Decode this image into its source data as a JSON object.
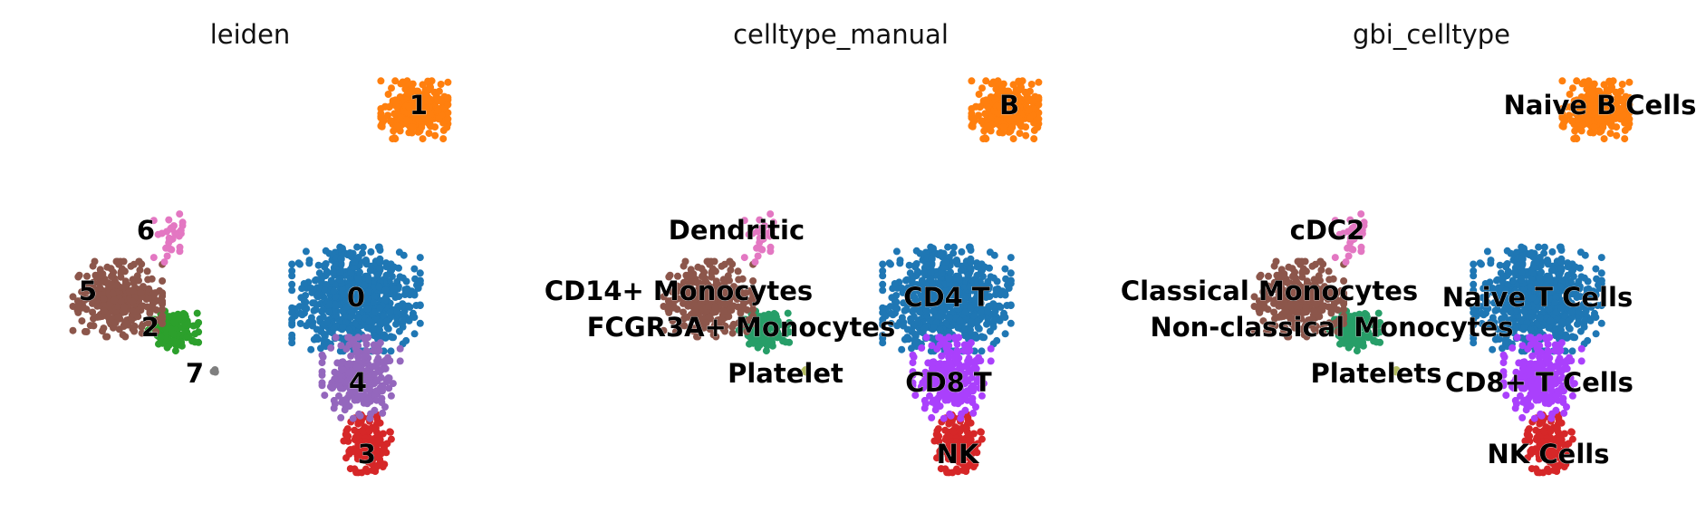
{
  "figure": {
    "background": "#ffffff"
  },
  "panels": [
    {
      "title": "leiden",
      "labels": [
        "1",
        "6",
        "5",
        "2",
        "0",
        "7",
        "4",
        "3"
      ]
    },
    {
      "title": "celltype_manual",
      "labels": [
        "B",
        "Dendritic",
        "CD14+ Monocytes",
        "FCGR3A+ Monocytes",
        "CD4 T",
        "Platelet",
        "CD8 T",
        "NK"
      ]
    },
    {
      "title": "gbi_celltype",
      "labels": [
        "Naive B Cells",
        "cDC2",
        "Classical Monocytes",
        "Non-classical Monocytes",
        "Naive T Cells",
        "Platelets",
        "CD8+ T Cells",
        "NK Cells"
      ]
    }
  ],
  "chart_data": [
    {
      "type": "scatter",
      "title": "leiden",
      "xlabel": "",
      "ylabel": "",
      "grid": false,
      "axes_visible": false,
      "legend": "on data",
      "series": [
        {
          "name": "0",
          "color": "#1f77b4",
          "center": [
            0.0,
            0.0
          ],
          "spread": [
            0.23,
            0.18
          ],
          "n": 700
        },
        {
          "name": "1",
          "color": "#ff7f0e",
          "center": [
            0.23,
            0.72
          ],
          "spread": [
            0.12,
            0.1
          ],
          "n": 330
        },
        {
          "name": "2",
          "color": "#2ca02c",
          "center": [
            -0.72,
            -0.12
          ],
          "spread": [
            0.09,
            0.07
          ],
          "n": 120
        },
        {
          "name": "3",
          "color": "#d62728",
          "center": [
            0.04,
            -0.55
          ],
          "spread": [
            0.09,
            0.1
          ],
          "n": 160
        },
        {
          "name": "4",
          "color": "#9467bd",
          "center": [
            0.02,
            -0.3
          ],
          "spread": [
            0.14,
            0.14
          ],
          "n": 260
        },
        {
          "name": "5",
          "color": "#8c564b",
          "center": [
            -0.94,
            0.0
          ],
          "spread": [
            0.16,
            0.13
          ],
          "n": 330
        },
        {
          "name": "6",
          "color": "#e377c2",
          "center": [
            -0.72,
            0.24
          ],
          "spread": [
            0.07,
            0.09
          ],
          "n": 30
        },
        {
          "name": "7",
          "color": "#7f7f7f",
          "center": [
            -0.56,
            -0.28
          ],
          "spread": [
            0.01,
            0.01
          ],
          "n": 3
        }
      ]
    },
    {
      "type": "scatter",
      "title": "celltype_manual",
      "xlabel": "",
      "ylabel": "",
      "grid": false,
      "axes_visible": false,
      "legend": "on data",
      "series": [
        {
          "name": "CD4 T",
          "color": "#1f77b4",
          "center": [
            0.0,
            0.0
          ],
          "spread": [
            0.23,
            0.18
          ],
          "n": 700
        },
        {
          "name": "B",
          "color": "#ff7f0e",
          "center": [
            0.23,
            0.72
          ],
          "spread": [
            0.12,
            0.1
          ],
          "n": 330
        },
        {
          "name": "FCGR3A+ Monocytes",
          "color": "#279e68",
          "center": [
            -0.72,
            -0.12
          ],
          "spread": [
            0.09,
            0.07
          ],
          "n": 120
        },
        {
          "name": "NK",
          "color": "#d62728",
          "center": [
            0.04,
            -0.55
          ],
          "spread": [
            0.09,
            0.1
          ],
          "n": 160
        },
        {
          "name": "CD8 T",
          "color": "#aa40fc",
          "center": [
            0.02,
            -0.3
          ],
          "spread": [
            0.14,
            0.14
          ],
          "n": 260
        },
        {
          "name": "CD14+ Monocytes",
          "color": "#8c564b",
          "center": [
            -0.94,
            0.0
          ],
          "spread": [
            0.16,
            0.13
          ],
          "n": 330
        },
        {
          "name": "Dendritic",
          "color": "#e377c2",
          "center": [
            -0.72,
            0.24
          ],
          "spread": [
            0.07,
            0.09
          ],
          "n": 30
        },
        {
          "name": "Platelet",
          "color": "#b5bd61",
          "center": [
            -0.56,
            -0.28
          ],
          "spread": [
            0.01,
            0.01
          ],
          "n": 3
        }
      ]
    },
    {
      "type": "scatter",
      "title": "gbi_celltype",
      "xlabel": "",
      "ylabel": "",
      "grid": false,
      "axes_visible": false,
      "legend": "on data",
      "series": [
        {
          "name": "Naive T Cells",
          "color": "#1f77b4",
          "center": [
            0.0,
            0.0
          ],
          "spread": [
            0.23,
            0.18
          ],
          "n": 700
        },
        {
          "name": "Naive B Cells",
          "color": "#ff7f0e",
          "center": [
            0.23,
            0.72
          ],
          "spread": [
            0.12,
            0.1
          ],
          "n": 330
        },
        {
          "name": "Non-classical Monocytes",
          "color": "#279e68",
          "center": [
            -0.72,
            -0.12
          ],
          "spread": [
            0.09,
            0.07
          ],
          "n": 120
        },
        {
          "name": "NK Cells",
          "color": "#d62728",
          "center": [
            0.04,
            -0.55
          ],
          "spread": [
            0.09,
            0.1
          ],
          "n": 160
        },
        {
          "name": "CD8+ T Cells",
          "color": "#aa40fc",
          "center": [
            0.02,
            -0.3
          ],
          "spread": [
            0.14,
            0.14
          ],
          "n": 260
        },
        {
          "name": "Classical Monocytes",
          "color": "#8c564b",
          "center": [
            -0.94,
            0.0
          ],
          "spread": [
            0.16,
            0.13
          ],
          "n": 330
        },
        {
          "name": "cDC2",
          "color": "#e377c2",
          "center": [
            -0.72,
            0.24
          ],
          "spread": [
            0.07,
            0.09
          ],
          "n": 30
        },
        {
          "name": "Platelets",
          "color": "#b5bd61",
          "center": [
            -0.56,
            -0.28
          ],
          "spread": [
            0.01,
            0.01
          ],
          "n": 3
        }
      ]
    }
  ]
}
